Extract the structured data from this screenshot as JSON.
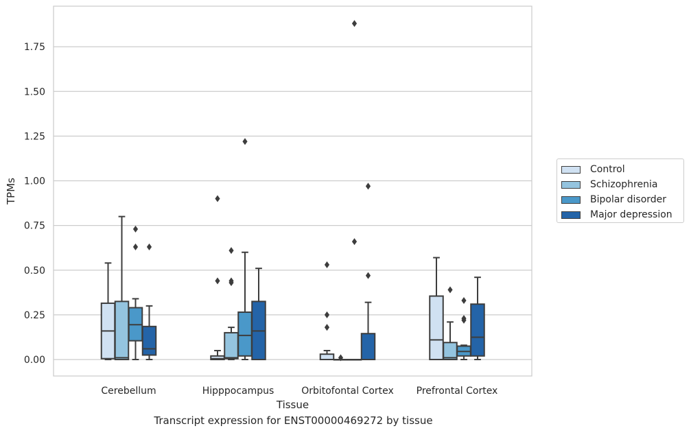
{
  "chart_data": {
    "type": "box",
    "xlabel": "Tissue",
    "ylabel": "TPMs",
    "ylim": [
      -0.09,
      1.98
    ],
    "yticks": [
      "0.00",
      "0.25",
      "0.50",
      "0.75",
      "1.00",
      "1.25",
      "1.50",
      "1.75"
    ],
    "ytick_values": [
      0,
      0.25,
      0.5,
      0.75,
      1.0,
      1.25,
      1.5,
      1.75
    ],
    "grid": "horizontal",
    "legend_position": "right",
    "categories": [
      "Cerebellum",
      "Hipppocampus",
      "Orbitofontal Cortex",
      "Prefrontal Cortex"
    ],
    "series": [
      {
        "name": "Control",
        "color": "#d0e1f2",
        "boxes": [
          {
            "min": 0.0,
            "q1": 0.005,
            "median": 0.16,
            "q3": 0.315,
            "max": 0.54,
            "outliers": []
          },
          {
            "min": 0.0,
            "q1": 0.0,
            "median": 0.005,
            "q3": 0.02,
            "max": 0.05,
            "outliers": [
              0.44,
              0.9
            ]
          },
          {
            "min": 0.0,
            "q1": 0.0,
            "median": 0.0,
            "q3": 0.03,
            "max": 0.05,
            "outliers": [
              0.18,
              0.25,
              0.53
            ]
          },
          {
            "min": 0.0,
            "q1": 0.0,
            "median": 0.11,
            "q3": 0.355,
            "max": 0.57,
            "outliers": []
          }
        ]
      },
      {
        "name": "Schizophrenia",
        "color": "#94c4df",
        "boxes": [
          {
            "min": 0.0,
            "q1": 0.0,
            "median": 0.01,
            "q3": 0.325,
            "max": 0.8,
            "outliers": []
          },
          {
            "min": 0.0,
            "q1": 0.005,
            "median": 0.01,
            "q3": 0.15,
            "max": 0.18,
            "outliers": [
              0.43,
              0.44,
              0.61
            ]
          },
          {
            "min": 0.0,
            "q1": 0.0,
            "median": 0.0,
            "q3": 0.0,
            "max": 0.0,
            "outliers": [
              0.01
            ]
          },
          {
            "min": 0.0,
            "q1": 0.0,
            "median": 0.01,
            "q3": 0.095,
            "max": 0.21,
            "outliers": [
              0.39
            ]
          }
        ]
      },
      {
        "name": "Bipolar disorder",
        "color": "#4a98c9",
        "boxes": [
          {
            "min": 0.0,
            "q1": 0.105,
            "median": 0.195,
            "q3": 0.29,
            "max": 0.34,
            "outliers": [
              0.63,
              0.73
            ]
          },
          {
            "min": 0.0,
            "q1": 0.02,
            "median": 0.135,
            "q3": 0.265,
            "max": 0.6,
            "outliers": [
              1.22
            ]
          },
          {
            "min": 0.0,
            "q1": 0.0,
            "median": 0.0,
            "q3": 0.0,
            "max": 0.0,
            "outliers": [
              0.66,
              1.88
            ]
          },
          {
            "min": 0.0,
            "q1": 0.02,
            "median": 0.045,
            "q3": 0.075,
            "max": 0.08,
            "outliers": [
              0.22,
              0.23,
              0.33
            ]
          }
        ]
      },
      {
        "name": "Major depression",
        "color": "#2464a8",
        "boxes": [
          {
            "min": 0.0,
            "q1": 0.025,
            "median": 0.06,
            "q3": 0.185,
            "max": 0.3,
            "outliers": [
              0.63
            ]
          },
          {
            "min": 0.0,
            "q1": 0.0,
            "median": 0.16,
            "q3": 0.325,
            "max": 0.51,
            "outliers": []
          },
          {
            "min": 0.0,
            "q1": 0.0,
            "median": 0.0,
            "q3": 0.145,
            "max": 0.32,
            "outliers": [
              0.47,
              0.97
            ]
          },
          {
            "min": 0.0,
            "q1": 0.02,
            "median": 0.125,
            "q3": 0.31,
            "max": 0.46,
            "outliers": []
          }
        ]
      }
    ],
    "caption": "Transcript expression for ENST00000469272 by tissue"
  },
  "colors": {
    "box_edge": "#3d3d3d",
    "grid": "#cccccc",
    "axes_edge": "#cccccc",
    "text": "#262626"
  }
}
